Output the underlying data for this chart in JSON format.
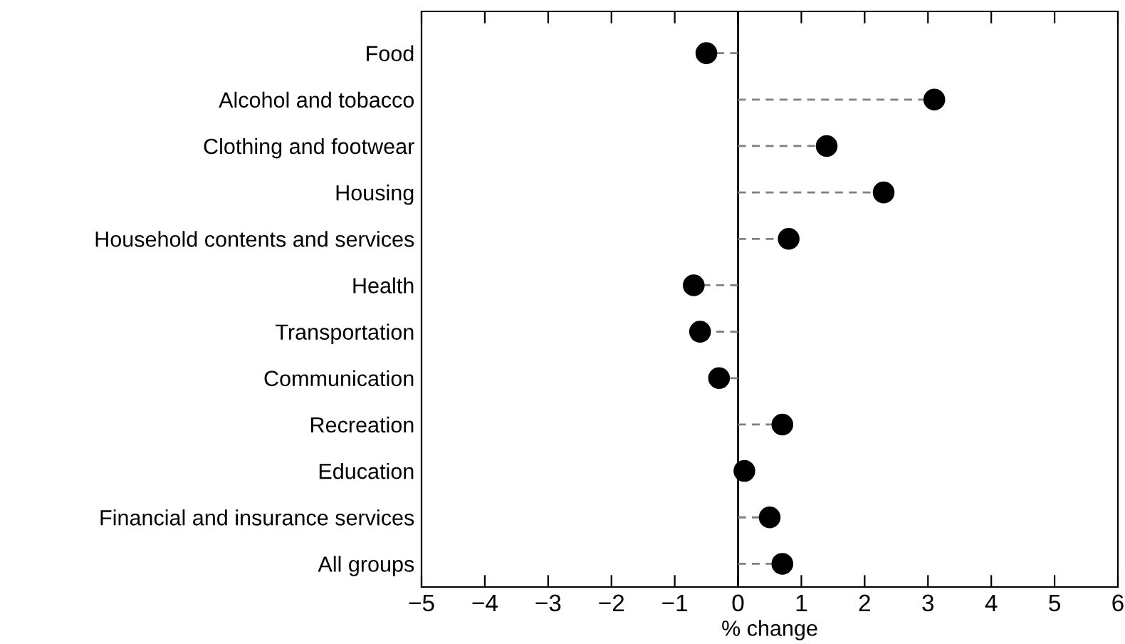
{
  "chart_data": {
    "type": "lollipop",
    "orientation": "horizontal",
    "xlabel": "% change",
    "categories": [
      "Food",
      "Alcohol and tobacco",
      "Clothing and footwear",
      "Housing",
      "Household contents and services",
      "Health",
      "Transportation",
      "Communication",
      "Recreation",
      "Education",
      "Financial and insurance services",
      "All groups"
    ],
    "values": [
      -0.5,
      3.1,
      1.4,
      2.3,
      0.8,
      -0.7,
      -0.6,
      -0.3,
      0.7,
      0.1,
      0.5,
      0.7
    ],
    "color": "#000000",
    "line_style": "dashed",
    "marker": "circle",
    "xlim": [
      -5,
      6
    ],
    "xticks": [
      {
        "value": -5,
        "label": "−5"
      },
      {
        "value": -4,
        "label": "−4"
      },
      {
        "value": -3,
        "label": "−3"
      },
      {
        "value": -2,
        "label": "−2"
      },
      {
        "value": -1,
        "label": "−1"
      },
      0,
      1,
      2,
      3,
      4,
      5,
      6
    ],
    "ref_lines": [
      {
        "axis": "x",
        "value": 0,
        "color": "#000000"
      }
    ],
    "grid": false,
    "legend": false
  }
}
